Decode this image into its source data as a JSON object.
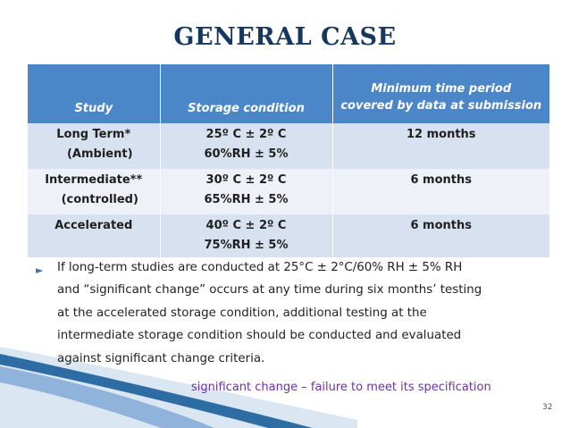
{
  "title": "GENERAL CASE",
  "table": {
    "headers": [
      "Study",
      "Storage condition",
      "Minimum time period covered by data at submission"
    ],
    "header3_lines": [
      "Minimum time period",
      "covered by data at submission"
    ],
    "rows": [
      {
        "study": [
          "Long Term*",
          "(Ambient)"
        ],
        "condition": [
          "25º C ±  2º C",
          "60%RH  ± 5%"
        ],
        "period": "12 months"
      },
      {
        "study": [
          "Intermediate**",
          "(controlled)"
        ],
        "condition": [
          "30º C ± 2º C",
          "65%RH  ± 5%"
        ],
        "period": "6 months"
      },
      {
        "study": [
          "Accelerated"
        ],
        "condition": [
          "40º C ±  2º C",
          "75%RH  ±  5%"
        ],
        "period": "6 months"
      }
    ]
  },
  "bullet": {
    "lines": [
      "If long-term studies are conducted at 25°C ± 2°C/60% RH ± 5% RH",
      "and “significant change” occurs at any time during six months’ testing",
      "at the accelerated storage condition, additional testing at the",
      "intermediate storage condition should be conducted and evaluated",
      "against significant change criteria."
    ]
  },
  "note": "significant change – failure to meet its specification",
  "page_number": "32",
  "colors": {
    "title": "#17375e",
    "header_bg": "#4a86c8",
    "row_dark": "#d8e1ef",
    "row_light": "#eef2f8",
    "note": "#7030a0",
    "deco": "#2e6da4"
  },
  "icons": {
    "bullet": "triangle-right-icon"
  }
}
